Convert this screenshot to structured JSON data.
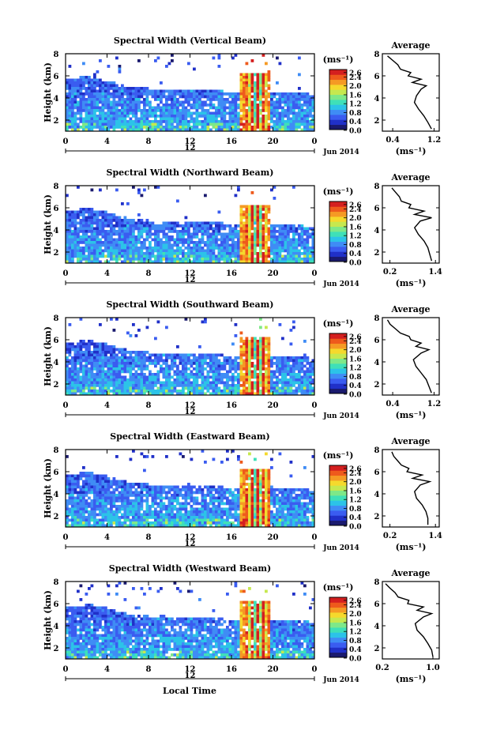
{
  "figure": {
    "xlabel": "Local Time",
    "date_label": "Jun 2014",
    "colorbar_unit": "(ms⁻¹)",
    "colorbar_ticks": [
      "2.6",
      "2.4",
      "2.2",
      "2.0",
      "1.8",
      "1.6",
      "1.4",
      "1.2",
      "1.0",
      "0.8",
      "0.6",
      "0.4",
      "0.2",
      "0.0"
    ],
    "colorbar_tick_labels_shown": [
      "2.6",
      "2.4",
      "2.0",
      "1.6",
      "1.2",
      "0.8",
      "0.4",
      "0.0"
    ],
    "colors": {
      "colormap": [
        "#1a1a6e",
        "#2030c8",
        "#3a5cf0",
        "#3f8cf5",
        "#2cc3e8",
        "#3fe0b8",
        "#7ee889",
        "#c6e84f",
        "#f5d92c",
        "#f59a24",
        "#ee5a1c",
        "#d41f1f"
      ]
    }
  },
  "chart_data": [
    {
      "type": "heatmap",
      "title": "Spectral Width (Vertical Beam)",
      "ylabel": "Height (km)",
      "x_ticks": [
        "0",
        "4",
        "8",
        "12",
        "16",
        "20",
        "0"
      ],
      "x_center_label": "12",
      "xlim": [
        0,
        24
      ],
      "ylim": [
        1,
        8
      ],
      "y_ticks": [
        2,
        4,
        6,
        8
      ],
      "colorbar": {
        "min": 0.0,
        "max": 2.7,
        "unit": "ms⁻¹"
      },
      "average_profile": {
        "title": "Average",
        "xlabel": "(ms⁻¹)",
        "xlim": [
          0.2,
          1.3
        ],
        "x_ticks": [
          "0.4",
          "1.2"
        ],
        "y_ticks": [
          2,
          4,
          6,
          8
        ],
        "height_km": [
          1.2,
          1.8,
          2.4,
          3.0,
          3.6,
          4.2,
          4.8,
          5.1,
          5.4,
          5.7,
          6.0,
          6.3,
          6.6,
          7.0,
          7.4,
          7.8
        ],
        "width_ms": [
          1.15,
          1.08,
          1.0,
          0.9,
          0.82,
          0.86,
          0.95,
          1.05,
          0.78,
          0.95,
          0.7,
          0.75,
          0.55,
          0.5,
          0.4,
          0.3
        ]
      }
    },
    {
      "type": "heatmap",
      "title": "Spectral Width (Northward Beam)",
      "ylabel": "Height (km)",
      "x_ticks": [
        "0",
        "4",
        "8",
        "12",
        "16",
        "20",
        "0"
      ],
      "x_center_label": "12",
      "xlim": [
        0,
        24
      ],
      "ylim": [
        1,
        8
      ],
      "y_ticks": [
        2,
        4,
        6,
        8
      ],
      "colorbar": {
        "min": 0.0,
        "max": 2.7,
        "unit": "ms⁻¹"
      },
      "average_profile": {
        "title": "Average",
        "xlabel": "(ms⁻¹)",
        "xlim": [
          0.0,
          1.5
        ],
        "x_ticks": [
          "0.2",
          "1.4"
        ],
        "y_ticks": [
          2,
          4,
          6,
          8
        ],
        "height_km": [
          1.2,
          1.8,
          2.4,
          3.0,
          3.6,
          4.2,
          4.8,
          5.1,
          5.4,
          5.7,
          6.0,
          6.3,
          6.6,
          7.0,
          7.4,
          7.8
        ],
        "width_ms": [
          1.3,
          1.25,
          1.2,
          1.1,
          0.95,
          0.85,
          1.0,
          1.3,
          0.85,
          1.1,
          0.7,
          0.75,
          0.5,
          0.45,
          0.35,
          0.25
        ]
      }
    },
    {
      "type": "heatmap",
      "title": "Spectral Width (Southward Beam)",
      "ylabel": "Height (km)",
      "x_ticks": [
        "0",
        "4",
        "8",
        "12",
        "16",
        "20",
        "0"
      ],
      "x_center_label": "12",
      "xlim": [
        0,
        24
      ],
      "ylim": [
        1,
        8
      ],
      "y_ticks": [
        2,
        4,
        6,
        8
      ],
      "colorbar": {
        "min": 0.0,
        "max": 2.7,
        "unit": "ms⁻¹"
      },
      "average_profile": {
        "title": "Average",
        "xlabel": "(ms⁻¹)",
        "xlim": [
          0.2,
          1.3
        ],
        "x_ticks": [
          "0.4",
          "1.2"
        ],
        "y_ticks": [
          2,
          4,
          6,
          8
        ],
        "height_km": [
          1.2,
          1.8,
          2.4,
          3.0,
          3.6,
          4.2,
          4.8,
          5.1,
          5.4,
          5.7,
          6.0,
          6.3,
          6.6,
          7.0,
          7.4,
          7.8
        ],
        "width_ms": [
          1.15,
          1.1,
          1.05,
          0.95,
          0.85,
          0.8,
          0.95,
          1.1,
          0.85,
          0.95,
          0.75,
          0.72,
          0.55,
          0.45,
          0.35,
          0.3
        ]
      }
    },
    {
      "type": "heatmap",
      "title": "Spectral Width (Eastward Beam)",
      "ylabel": "Height (km)",
      "x_ticks": [
        "0",
        "4",
        "8",
        "12",
        "16",
        "20",
        "0"
      ],
      "x_center_label": "12",
      "xlim": [
        0,
        24
      ],
      "ylim": [
        1,
        8
      ],
      "y_ticks": [
        2,
        4,
        6,
        8
      ],
      "colorbar": {
        "min": 0.0,
        "max": 2.7,
        "unit": "ms⁻¹"
      },
      "average_profile": {
        "title": "Average",
        "xlabel": "(ms⁻¹)",
        "xlim": [
          0.0,
          1.5
        ],
        "x_ticks": [
          "0.2",
          "1.4"
        ],
        "y_ticks": [
          2,
          4,
          6,
          8
        ],
        "height_km": [
          1.2,
          1.8,
          2.4,
          3.0,
          3.6,
          4.2,
          4.8,
          5.1,
          5.4,
          5.7,
          6.0,
          6.3,
          6.6,
          7.0,
          7.4,
          7.8
        ],
        "width_ms": [
          1.2,
          1.2,
          1.15,
          1.05,
          0.9,
          0.85,
          1.0,
          1.25,
          0.8,
          1.05,
          0.65,
          0.7,
          0.5,
          0.4,
          0.3,
          0.25
        ]
      }
    },
    {
      "type": "heatmap",
      "title": "Spectral Width (Westward Beam)",
      "ylabel": "Height (km)",
      "x_ticks": [
        "0",
        "4",
        "8",
        "12",
        "16",
        "20",
        "0"
      ],
      "x_center_label": "12",
      "xlim": [
        0,
        24
      ],
      "ylim": [
        1,
        8
      ],
      "y_ticks": [
        2,
        4,
        6,
        8
      ],
      "colorbar": {
        "min": 0.0,
        "max": 2.7,
        "unit": "ms⁻¹"
      },
      "average_profile": {
        "title": "Average",
        "xlabel": "(ms⁻¹)",
        "xlim": [
          0.2,
          1.1
        ],
        "x_ticks": [
          "0.2",
          "1.0"
        ],
        "y_ticks": [
          2,
          4,
          6,
          8
        ],
        "height_km": [
          1.2,
          1.8,
          2.4,
          3.0,
          3.6,
          4.2,
          4.8,
          5.1,
          5.4,
          5.7,
          6.0,
          6.3,
          6.6,
          7.0,
          7.4,
          7.8
        ],
        "width_ms": [
          1.0,
          0.98,
          0.92,
          0.85,
          0.75,
          0.72,
          0.85,
          0.98,
          0.75,
          0.85,
          0.6,
          0.62,
          0.45,
          0.4,
          0.32,
          0.25
        ]
      }
    }
  ]
}
